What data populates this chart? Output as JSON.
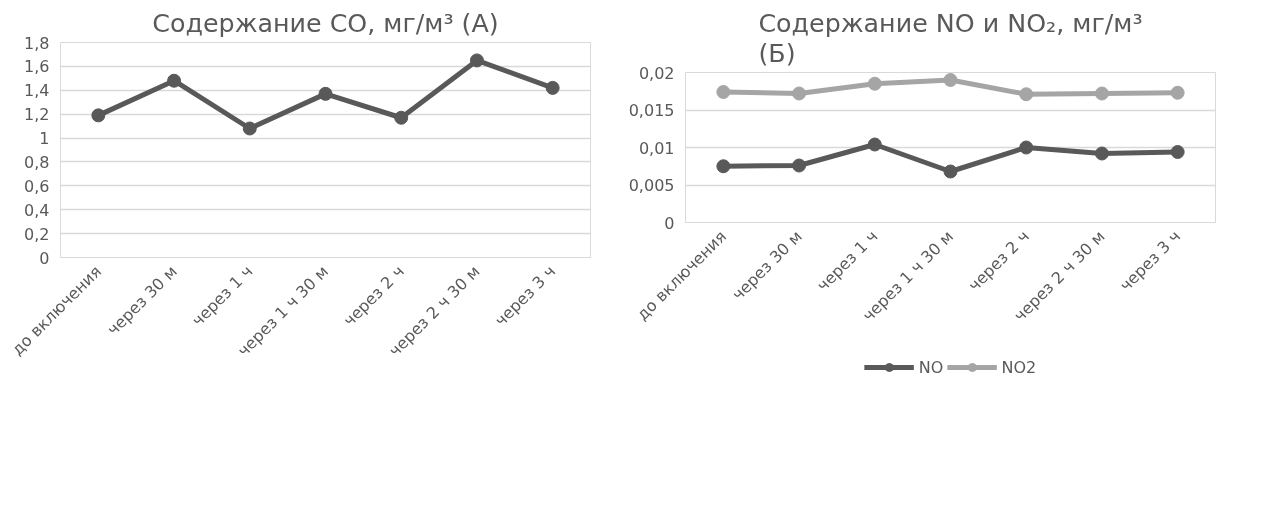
{
  "chart_data": [
    {
      "type": "line",
      "title": "Содержание CO, мг/м³ (А)",
      "categories": [
        "до включения",
        "через 30 м",
        "через 1 ч",
        "через 1 ч 30 м",
        "через 2 ч",
        "через 2 ч 30 м",
        "через 3 ч"
      ],
      "series": [
        {
          "color": "#595959",
          "values": [
            1.19,
            1.48,
            1.08,
            1.37,
            1.17,
            1.65,
            1.42
          ]
        }
      ],
      "ylim": [
        0,
        1.8
      ],
      "yticks": [
        0,
        {
          "value": 0.2,
          "label": "0,2"
        },
        {
          "value": 0.4,
          "label": "0,4"
        },
        {
          "value": 0.6,
          "label": "0,6"
        },
        {
          "value": 0.8,
          "label": "0,8"
        },
        1,
        {
          "value": 1.2,
          "label": "1,2"
        },
        {
          "value": 1.4,
          "label": "1,4"
        },
        {
          "value": 1.6,
          "label": "1,6"
        },
        {
          "value": 1.8,
          "label": "1,8"
        }
      ],
      "grid": "y",
      "marker": "circle",
      "legend": false
    },
    {
      "type": "line",
      "title": "Содержание NO и NO₂, мг/м³ (Б)",
      "categories": [
        "до включения",
        "через 30 м",
        "через 1 ч",
        "через 1 ч 30 м",
        "через 2 ч",
        "через 2 ч 30 м",
        "через 3 ч"
      ],
      "series": [
        {
          "name": "NO",
          "color": "#595959",
          "values": [
            0.0075,
            0.0076,
            0.0104,
            0.0068,
            0.01,
            0.0092,
            0.0094
          ]
        },
        {
          "name": "NO2",
          "color": "#a5a5a5",
          "values": [
            0.0174,
            0.0172,
            0.0185,
            0.019,
            0.0171,
            0.0172,
            0.0173
          ]
        }
      ],
      "ylim": [
        0,
        0.02
      ],
      "yticks": [
        0,
        {
          "value": 0.005,
          "label": "0,005"
        },
        {
          "value": 0.01,
          "label": "0,01"
        },
        {
          "value": 0.015,
          "label": "0,015"
        },
        {
          "value": 0.02,
          "label": "0,02"
        }
      ],
      "grid": "y",
      "marker": "circle",
      "legend": "bottom"
    }
  ]
}
